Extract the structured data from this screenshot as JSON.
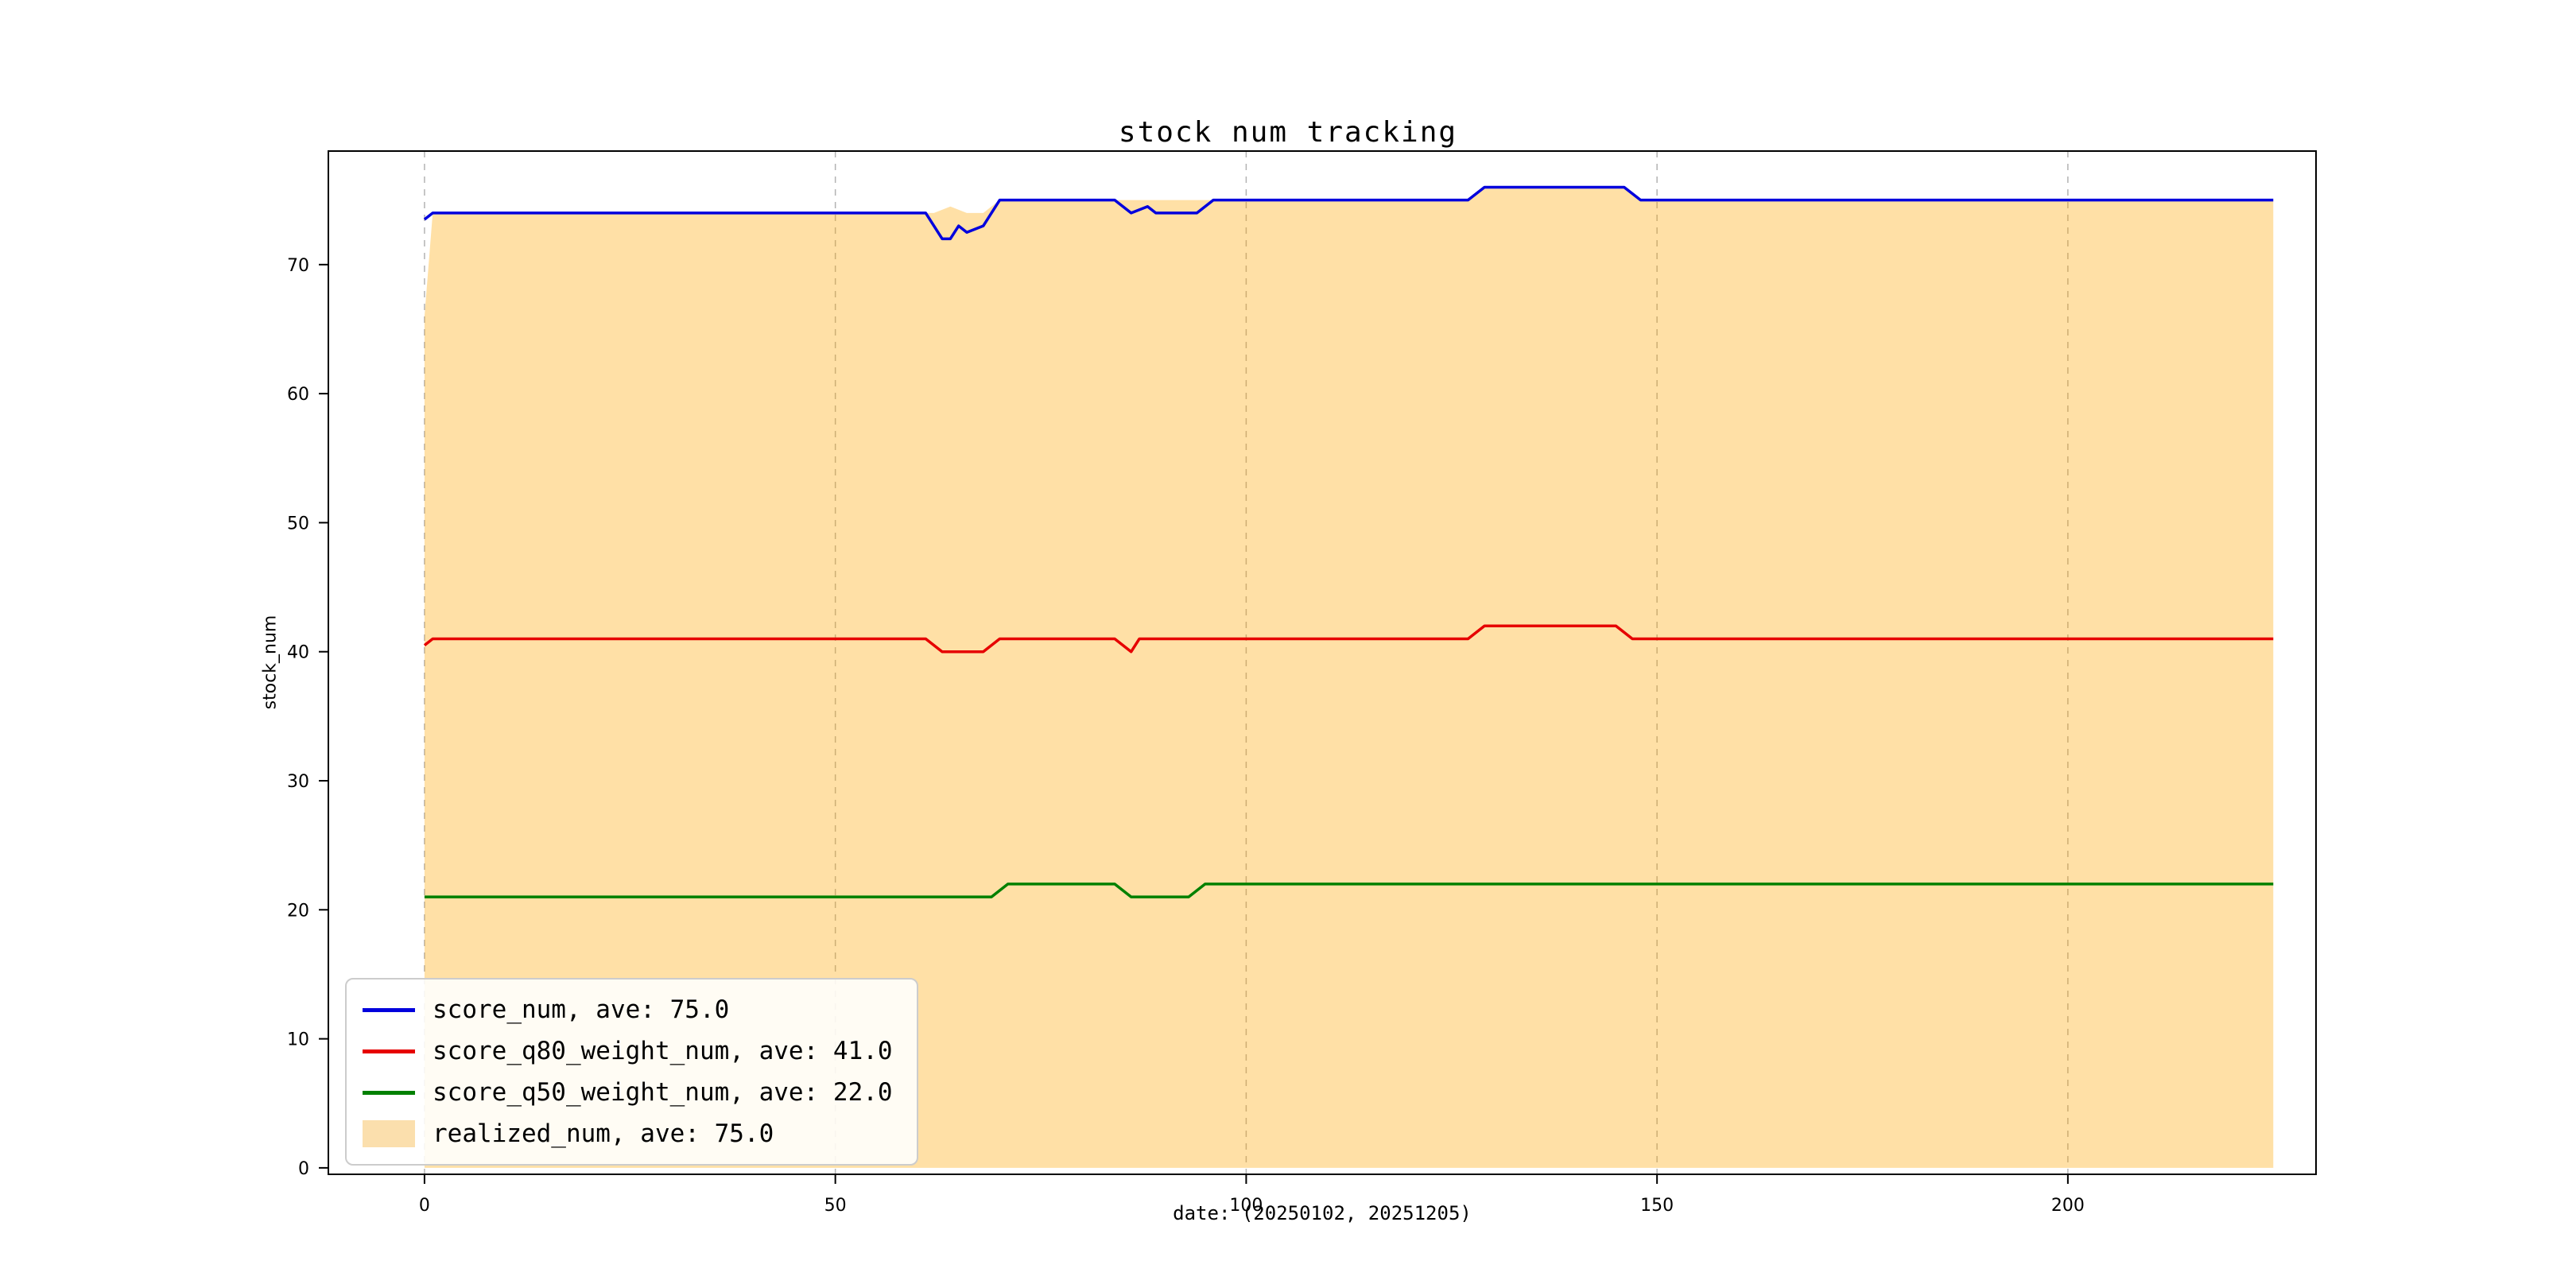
{
  "figure": {
    "title": "stock num tracking",
    "xlabel": "date: (20250102, 20251205)",
    "ylabel": "stock_num",
    "background": "#ffffff"
  },
  "chart_data": {
    "type": "line",
    "title": "stock num tracking",
    "xlabel": "date: (20250102, 20251205)",
    "ylabel": "stock_num",
    "xlim": [
      -11.7,
      230.2
    ],
    "ylim": [
      -0.5,
      78.8
    ],
    "x_ticks": [
      0,
      50,
      100,
      150,
      200
    ],
    "y_ticks": [
      0,
      10,
      20,
      30,
      40,
      50,
      60,
      70
    ],
    "grid": {
      "vertical_dashed": true,
      "horizontal": false,
      "color": "#b3b3b3"
    },
    "legend_position": "lower-left",
    "axis_color": "#000000",
    "series": [
      {
        "name": "score_num, ave: 75.0",
        "type": "line",
        "color": "#0000dd",
        "points": [
          [
            0,
            73.5
          ],
          [
            1,
            74
          ],
          [
            61,
            74
          ],
          [
            63,
            72
          ],
          [
            64,
            72
          ],
          [
            65,
            73
          ],
          [
            66,
            72.5
          ],
          [
            68,
            73
          ],
          [
            70,
            75
          ],
          [
            84,
            75
          ],
          [
            86,
            74
          ],
          [
            88,
            74.5
          ],
          [
            89,
            74
          ],
          [
            94,
            74
          ],
          [
            96,
            75
          ],
          [
            127,
            75
          ],
          [
            129,
            76
          ],
          [
            146,
            76
          ],
          [
            148,
            75
          ],
          [
            225,
            75
          ]
        ]
      },
      {
        "name": "score_q80_weight_num, ave: 41.0",
        "type": "line",
        "color": "#e60000",
        "points": [
          [
            0,
            40.5
          ],
          [
            1,
            41
          ],
          [
            61,
            41
          ],
          [
            63,
            40
          ],
          [
            68,
            40
          ],
          [
            70,
            41
          ],
          [
            84,
            41
          ],
          [
            86,
            40
          ],
          [
            87,
            41
          ],
          [
            127,
            41
          ],
          [
            129,
            42
          ],
          [
            145,
            42
          ],
          [
            147,
            41
          ],
          [
            225,
            41
          ]
        ]
      },
      {
        "name": "score_q50_weight_num, ave: 22.0",
        "type": "line",
        "color": "#008000",
        "points": [
          [
            0,
            21
          ],
          [
            69,
            21
          ],
          [
            71,
            22
          ],
          [
            84,
            22
          ],
          [
            86,
            21
          ],
          [
            93,
            21
          ],
          [
            95,
            22
          ],
          [
            225,
            22
          ]
        ]
      },
      {
        "name": "realized_num, ave: 75.0",
        "type": "area",
        "color": "#ffa500",
        "opacity": 0.35,
        "baseline": 0,
        "points": [
          [
            0,
            66
          ],
          [
            1,
            74
          ],
          [
            62,
            74
          ],
          [
            64,
            74.5
          ],
          [
            66,
            74
          ],
          [
            68,
            74
          ],
          [
            70,
            75
          ],
          [
            84,
            75
          ],
          [
            86,
            75
          ],
          [
            94,
            75
          ],
          [
            96,
            75
          ],
          [
            127,
            75
          ],
          [
            129,
            76
          ],
          [
            146,
            76
          ],
          [
            148,
            75
          ],
          [
            225,
            75
          ]
        ]
      }
    ]
  },
  "legend": {
    "items": [
      {
        "label": "score_num, ave: 75.0",
        "color": "#0000dd",
        "swatch": "line"
      },
      {
        "label": "score_q80_weight_num, ave: 41.0",
        "color": "#e60000",
        "swatch": "line"
      },
      {
        "label": "score_q50_weight_num, ave: 22.0",
        "color": "#008000",
        "swatch": "line"
      },
      {
        "label": "realized_num, ave: 75.0",
        "color": "#fbdfad",
        "swatch": "patch"
      }
    ]
  }
}
